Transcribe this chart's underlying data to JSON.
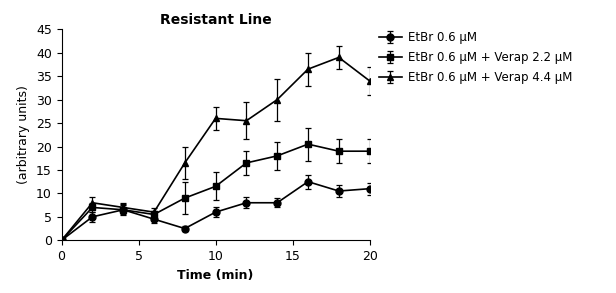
{
  "title": "Resistant Line",
  "xlabel": "Time (min)",
  "ylabel": "(arbitrary units)",
  "xlim": [
    0,
    20
  ],
  "ylim": [
    0,
    45
  ],
  "xticks": [
    0,
    5,
    10,
    15,
    20
  ],
  "yticks": [
    0,
    5,
    10,
    15,
    20,
    25,
    30,
    35,
    40,
    45
  ],
  "series": [
    {
      "label": "EtBr 0.6 μM",
      "marker": "o",
      "x": [
        0,
        2,
        4,
        6,
        8,
        10,
        12,
        14,
        16,
        18,
        20
      ],
      "y": [
        0,
        5.0,
        6.5,
        4.5,
        2.5,
        6.0,
        8.0,
        8.0,
        12.5,
        10.5,
        11.0
      ],
      "yerr": [
        0,
        1.0,
        1.2,
        0.8,
        0.5,
        1.0,
        1.2,
        1.0,
        1.5,
        1.2,
        1.3
      ]
    },
    {
      "label": "EtBr 0.6 μM + Verap 2.2 μM",
      "marker": "s",
      "x": [
        0,
        2,
        4,
        6,
        8,
        10,
        12,
        14,
        16,
        18,
        20
      ],
      "y": [
        0,
        7.0,
        6.5,
        5.5,
        9.0,
        11.5,
        16.5,
        18.0,
        20.5,
        19.0,
        19.0
      ],
      "yerr": [
        0,
        1.0,
        1.0,
        0.8,
        3.5,
        3.0,
        2.5,
        3.0,
        3.5,
        2.5,
        2.5
      ]
    },
    {
      "label": "EtBr 0.6 μM + Verap 4.4 μM",
      "marker": "^",
      "x": [
        0,
        2,
        4,
        6,
        8,
        10,
        12,
        14,
        16,
        18,
        20
      ],
      "y": [
        0,
        8.0,
        7.0,
        6.0,
        16.5,
        26.0,
        25.5,
        30.0,
        36.5,
        39.0,
        34.0
      ],
      "yerr": [
        0,
        1.2,
        1.0,
        0.8,
        3.5,
        2.5,
        4.0,
        4.5,
        3.5,
        2.5,
        3.0
      ]
    }
  ],
  "line_color": "#000000",
  "background_color": "#ffffff",
  "title_fontsize": 10,
  "label_fontsize": 9,
  "tick_fontsize": 9,
  "legend_fontsize": 8.5
}
